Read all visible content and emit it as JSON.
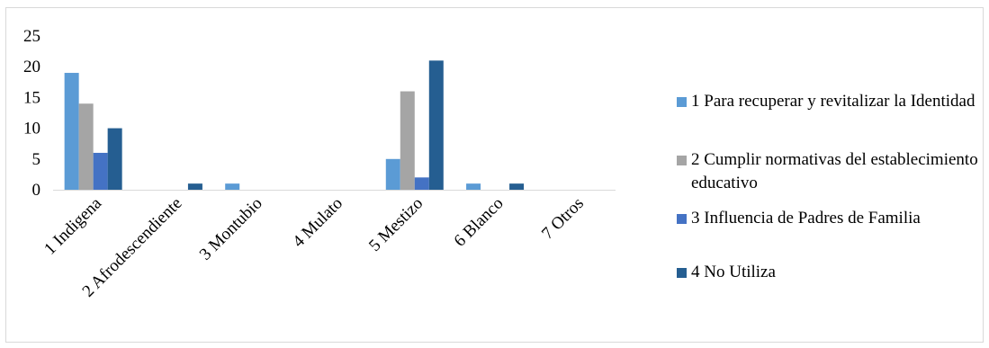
{
  "chart_data": {
    "type": "bar",
    "categories": [
      "1 Indigena",
      "2 Afrodescendiente",
      "3  Montubio",
      "4 Mulato",
      "5 Mestizo",
      "6 Blanco",
      "7 Otros"
    ],
    "series": [
      {
        "name": "1 Para recuperar y revitalizar la Identidad",
        "color": "#5b9bd5",
        "values": [
          19,
          0,
          1,
          0,
          5,
          1,
          0
        ]
      },
      {
        "name": "2 Cumplir normativas del establecimiento educativo",
        "color": "#a5a5a5",
        "values": [
          14,
          0,
          0,
          0,
          16,
          0,
          0
        ]
      },
      {
        "name": "3 Influencia de Padres de Familia",
        "color": "#4472c4",
        "values": [
          6,
          0,
          0,
          0,
          2,
          0,
          0
        ]
      },
      {
        "name": "4 No Utiliza",
        "color": "#255e91",
        "values": [
          10,
          1,
          0,
          0,
          21,
          1,
          0
        ]
      }
    ],
    "yticks": [
      "0",
      "5",
      "10",
      "15",
      "20",
      "25"
    ],
    "ylim": [
      0,
      25
    ],
    "grid": false,
    "legend": "right"
  }
}
